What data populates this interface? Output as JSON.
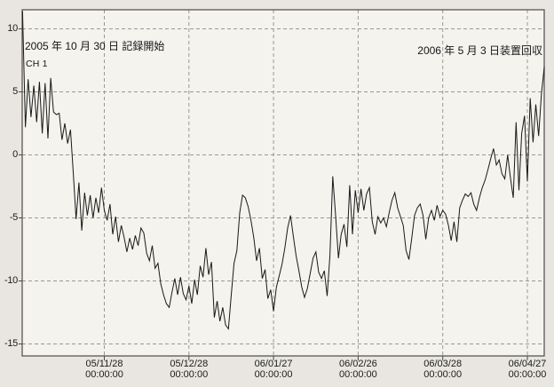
{
  "chart_data": {
    "type": "line",
    "title": "",
    "channel_label": "CH 1",
    "annotations": {
      "recording_start": "2005 年 10 月 30 日  記録開始",
      "device_recovery": "2006 年 5 月 3 日装置回収"
    },
    "grid": true,
    "legend_position": "none",
    "y_axis": {
      "ticks": [
        10,
        5,
        0,
        -5,
        -10,
        -15
      ],
      "range": [
        -15.9,
        11.5
      ]
    },
    "x_axis": {
      "start_date": "2005-10-30",
      "end_date": "2006-05-03",
      "range_days": [
        0,
        185
      ],
      "ticks": [
        {
          "date": "05/11/28",
          "time": "00:00:00",
          "day": 29
        },
        {
          "date": "05/12/28",
          "time": "00:00:00",
          "day": 59
        },
        {
          "date": "06/01/27",
          "time": "00:00:00",
          "day": 89
        },
        {
          "date": "06/02/26",
          "time": "00:00:00",
          "day": 119
        },
        {
          "date": "06/03/28",
          "time": "00:00:00",
          "day": 149
        },
        {
          "date": "06/04/27",
          "time": "00:00:00",
          "day": 179
        }
      ]
    },
    "series": [
      {
        "name": "CH 1",
        "sample_interval_days": 1,
        "values": [
          11.4,
          2.2,
          6.0,
          3.0,
          5.5,
          2.6,
          5.8,
          1.7,
          5.7,
          1.3,
          6.1,
          3.4,
          3.2,
          3.3,
          1.2,
          2.5,
          0.9,
          2.0,
          -1.5,
          -5.1,
          -2.2,
          -6.0,
          -3.0,
          -4.8,
          -3.2,
          -5.0,
          -3.4,
          -4.6,
          -2.6,
          -4.4,
          -5.2,
          -3.9,
          -6.3,
          -4.9,
          -6.9,
          -5.6,
          -6.5,
          -7.7,
          -6.6,
          -7.5,
          -6.4,
          -7.2,
          -5.8,
          -6.2,
          -7.8,
          -8.4,
          -7.2,
          -9.0,
          -8.6,
          -10.2,
          -11.1,
          -11.8,
          -12.1,
          -10.9,
          -9.8,
          -11.1,
          -9.7,
          -11.0,
          -11.5,
          -10.4,
          -11.8,
          -9.9,
          -11.1,
          -8.8,
          -9.7,
          -7.4,
          -9.5,
          -8.5,
          -12.9,
          -11.6,
          -13.2,
          -12.1,
          -13.5,
          -13.8,
          -11.1,
          -8.6,
          -7.6,
          -4.6,
          -3.2,
          -3.4,
          -4.1,
          -5.2,
          -6.6,
          -8.4,
          -7.4,
          -9.8,
          -9.1,
          -11.4,
          -10.7,
          -12.4,
          -10.5,
          -9.6,
          -8.7,
          -7.4,
          -5.8,
          -4.8,
          -6.4,
          -8.0,
          -9.2,
          -10.5,
          -11.3,
          -10.6,
          -9.4,
          -8.2,
          -7.7,
          -9.3,
          -9.8,
          -9.2,
          -11.2,
          -8.0,
          -1.7,
          -4.8,
          -8.2,
          -6.3,
          -5.5,
          -7.3,
          -2.4,
          -6.3,
          -2.8,
          -4.6,
          -2.7,
          -4.4,
          -3.1,
          -2.6,
          -5.3,
          -6.3,
          -4.9,
          -5.4,
          -5.0,
          -5.7,
          -4.6,
          -3.6,
          -3.0,
          -4.2,
          -4.9,
          -5.6,
          -7.6,
          -8.3,
          -6.6,
          -4.8,
          -4.2,
          -3.9,
          -4.8,
          -6.7,
          -5.0,
          -4.4,
          -5.2,
          -4.0,
          -4.9,
          -4.4,
          -4.7,
          -5.6,
          -6.8,
          -5.3,
          -6.9,
          -4.2,
          -3.6,
          -3.1,
          -3.3,
          -3.0,
          -3.9,
          -4.4,
          -3.4,
          -2.6,
          -2.0,
          -1.2,
          -0.3,
          0.5,
          -0.8,
          -0.4,
          -1.5,
          -1.9,
          0.0,
          -1.8,
          -3.4,
          2.6,
          -2.8,
          1.7,
          3.1,
          -2.1,
          4.5,
          1.0,
          4.0,
          1.5,
          4.9,
          7.0
        ]
      }
    ],
    "colors": {
      "trace": "#191919",
      "grid": "#9a988f",
      "frame": "#4c4a46",
      "plot_background": "#f5f3ee",
      "page_background": "#e9e6e1"
    }
  }
}
